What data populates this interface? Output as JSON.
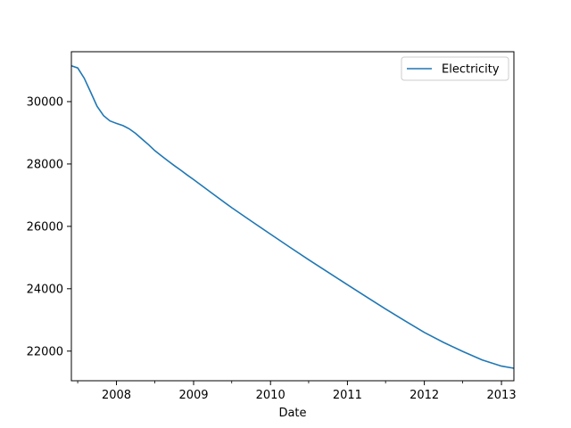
{
  "chart_data": {
    "type": "line",
    "title": "",
    "xlabel": "Date",
    "ylabel": "",
    "xlim": [
      "2007-06-01",
      "2013-03-01"
    ],
    "ylim": [
      21050,
      31600
    ],
    "grid": false,
    "legend": {
      "position": "top-right",
      "entries": [
        "Electricity"
      ]
    },
    "x_major_ticks": [
      {
        "date": "2008-01-01",
        "label": "2008"
      },
      {
        "date": "2009-01-01",
        "label": "2009"
      },
      {
        "date": "2010-01-01",
        "label": "2010"
      },
      {
        "date": "2011-01-01",
        "label": "2011"
      },
      {
        "date": "2012-01-01",
        "label": "2012"
      },
      {
        "date": "2013-01-01",
        "label": "2013"
      }
    ],
    "x_minor_ticks": [
      "2007-07-01",
      "2008-07-01",
      "2009-07-01",
      "2010-07-01",
      "2011-07-01",
      "2012-07-01"
    ],
    "y_ticks": [
      {
        "value": 22000,
        "label": "22000"
      },
      {
        "value": 24000,
        "label": "24000"
      },
      {
        "value": 26000,
        "label": "26000"
      },
      {
        "value": 28000,
        "label": "28000"
      },
      {
        "value": 30000,
        "label": "30000"
      }
    ],
    "series": [
      {
        "name": "Electricity",
        "color": "#1f77b4",
        "points": [
          [
            "2007-06-01",
            31150
          ],
          [
            "2007-07-01",
            31080
          ],
          [
            "2007-08-01",
            30750
          ],
          [
            "2007-09-01",
            30300
          ],
          [
            "2007-10-01",
            29850
          ],
          [
            "2007-11-01",
            29550
          ],
          [
            "2007-12-01",
            29380
          ],
          [
            "2008-01-01",
            29300
          ],
          [
            "2008-02-01",
            29230
          ],
          [
            "2008-03-01",
            29130
          ],
          [
            "2008-04-01",
            28980
          ],
          [
            "2008-05-01",
            28800
          ],
          [
            "2008-06-01",
            28620
          ],
          [
            "2008-07-01",
            28430
          ],
          [
            "2008-08-01",
            28260
          ],
          [
            "2008-09-01",
            28100
          ],
          [
            "2008-10-01",
            27950
          ],
          [
            "2008-11-01",
            27800
          ],
          [
            "2008-12-01",
            27650
          ],
          [
            "2009-01-01",
            27500
          ],
          [
            "2009-04-01",
            27050
          ],
          [
            "2009-07-01",
            26600
          ],
          [
            "2009-10-01",
            26170
          ],
          [
            "2010-01-01",
            25750
          ],
          [
            "2010-04-01",
            25340
          ],
          [
            "2010-07-01",
            24930
          ],
          [
            "2010-10-01",
            24530
          ],
          [
            "2011-01-01",
            24130
          ],
          [
            "2011-04-01",
            23740
          ],
          [
            "2011-07-01",
            23350
          ],
          [
            "2011-10-01",
            22970
          ],
          [
            "2012-01-01",
            22600
          ],
          [
            "2012-04-01",
            22280
          ],
          [
            "2012-07-01",
            21990
          ],
          [
            "2012-10-01",
            21720
          ],
          [
            "2013-01-01",
            21520
          ],
          [
            "2013-03-01",
            21450
          ]
        ]
      }
    ]
  }
}
